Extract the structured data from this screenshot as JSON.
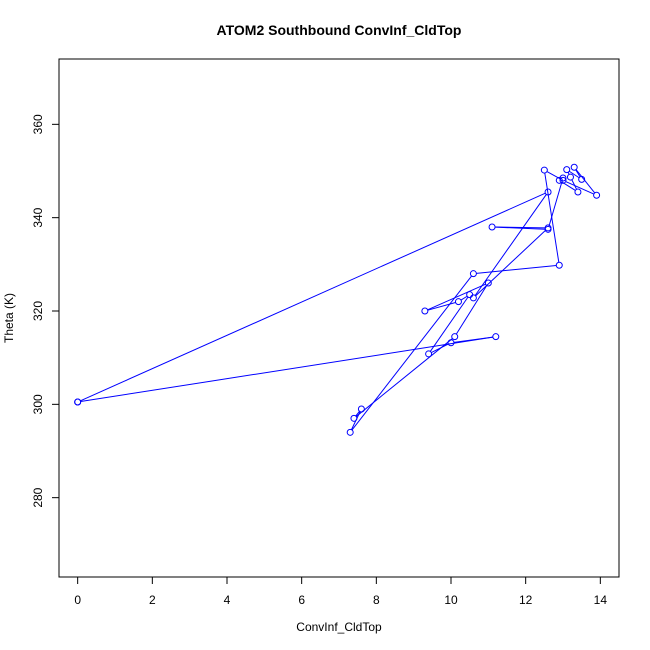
{
  "chart_data": {
    "type": "line",
    "title": "ATOM2 Southbound ConvInf_CldTop",
    "xlabel": "ConvInf_CldTop",
    "ylabel": "Theta (K)",
    "xlim": [
      -0.5,
      14.5
    ],
    "ylim": [
      263,
      374
    ],
    "x_ticks": [
      0,
      2,
      4,
      6,
      8,
      10,
      12,
      14
    ],
    "y_ticks": [
      280,
      300,
      320,
      340,
      360
    ],
    "grid": false,
    "legend": "none",
    "colors": {
      "series": "#0000ff"
    },
    "series": [
      {
        "x": [
          0.0,
          11.2,
          10.0,
          9.4,
          10.5,
          10.2,
          9.3,
          11.0,
          10.1,
          7.4,
          7.6,
          7.3,
          10.6,
          12.9,
          12.5,
          13.0,
          13.9,
          13.3,
          13.5,
          13.1,
          13.2,
          13.4,
          12.9,
          13.0,
          12.6,
          11.1,
          12.6,
          10.6,
          12.6,
          0.0
        ],
        "y": [
          300.5,
          314.5,
          313.2,
          310.8,
          323.5,
          322.0,
          320.0,
          326.0,
          314.5,
          297.0,
          299.0,
          294.0,
          328.0,
          329.8,
          350.2,
          348.0,
          344.8,
          350.8,
          348.2,
          350.3,
          348.7,
          345.5,
          348.0,
          348.5,
          337.5,
          338.0,
          337.8,
          322.8,
          345.5,
          300.5
        ]
      }
    ]
  }
}
